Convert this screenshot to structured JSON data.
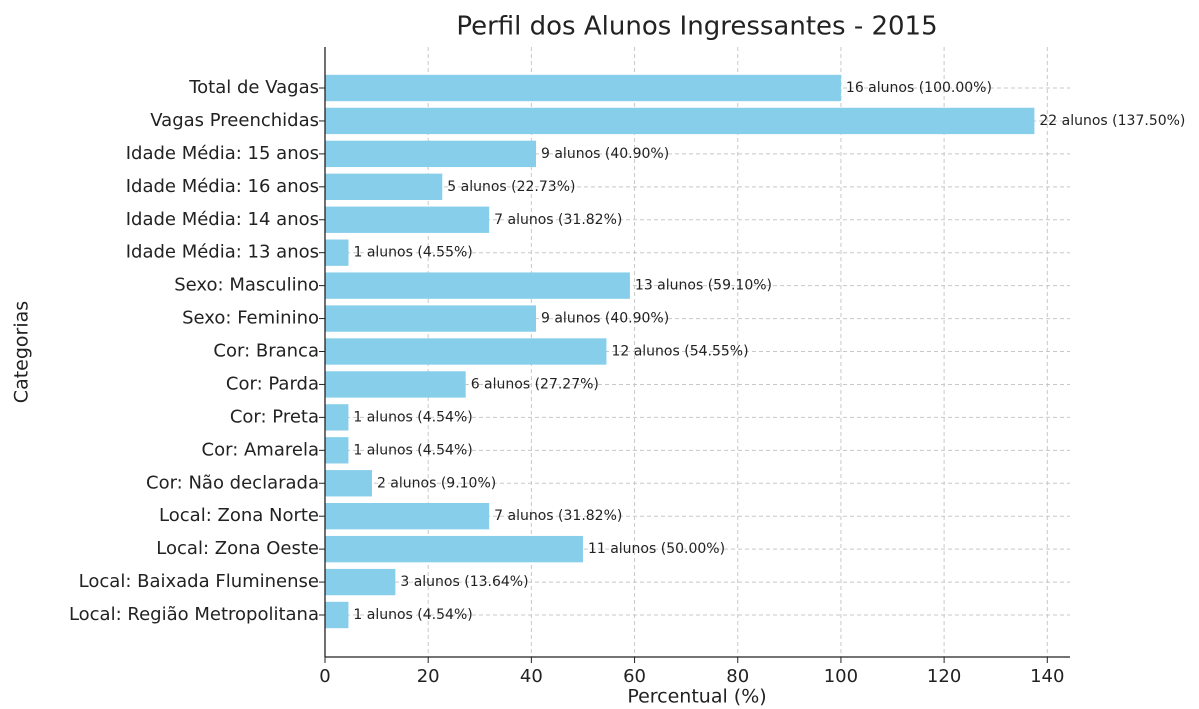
{
  "chart_data": {
    "type": "barh",
    "title": "Perfil dos Alunos Ingressantes - 2015",
    "xlabel": "Percentual (%)",
    "ylabel": "Categorias",
    "categories": [
      "Total de Vagas",
      "Vagas Preenchidas",
      "Idade Média: 15 anos",
      "Idade Média: 16 anos",
      "Idade Média: 14 anos",
      "Idade Média: 13 anos",
      "Sexo: Masculino",
      "Sexo: Feminino",
      "Cor: Branca",
      "Cor: Parda",
      "Cor: Preta",
      "Cor: Amarela",
      "Cor: Não declarada",
      "Local: Zona Norte",
      "Local: Zona Oeste",
      "Local: Baixada Fluminense",
      "Local: Região Metropolitana"
    ],
    "values": [
      100,
      137.5,
      40.9,
      22.73,
      31.82,
      4.55,
      59.1,
      40.9,
      54.55,
      27.27,
      4.54,
      4.54,
      9.1,
      31.82,
      50,
      13.64,
      4.54
    ],
    "value_labels": [
      "16 alunos (100.00%)",
      "22 alunos (137.50%)",
      "9 alunos (40.90%)",
      "5 alunos (22.73%)",
      "7 alunos (31.82%)",
      "1 alunos (4.55%)",
      "13 alunos (59.10%)",
      "9 alunos (40.90%)",
      "12 alunos (54.55%)",
      "6 alunos (27.27%)",
      "1 alunos (4.54%)",
      "1 alunos (4.54%)",
      "2 alunos (9.10%)",
      "7 alunos (31.82%)",
      "11 alunos (50.00%)",
      "3 alunos (13.64%)",
      "1 alunos (4.54%)"
    ],
    "color": "#87ceeb",
    "xlim": [
      0,
      144.4
    ],
    "xticks": [
      0,
      20,
      40,
      60,
      80,
      100,
      120,
      140
    ],
    "grid": true
  }
}
